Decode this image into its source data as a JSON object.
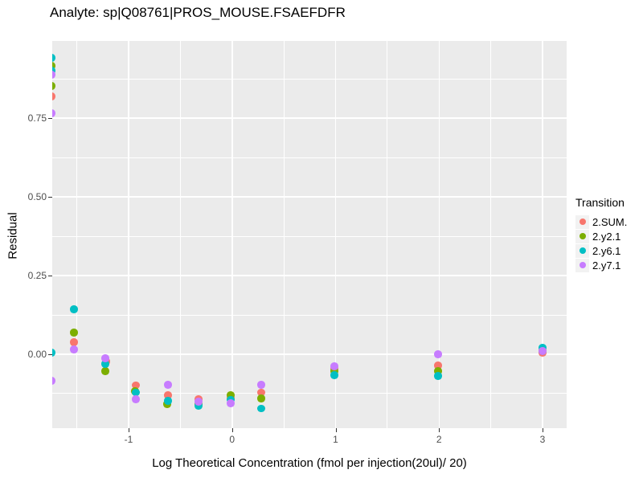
{
  "title": "Analyte: sp|Q08761|PROS_MOUSE.FSAEFDFR",
  "axes": {
    "x": {
      "label": "Log Theoretical Concentration (fmol per injection(20ul)/ 20)",
      "tick_labels": [
        "-1",
        "0",
        "1",
        "2",
        "3"
      ]
    },
    "y": {
      "label": "Residual",
      "tick_labels": [
        "0.75",
        "0.50",
        "0.25",
        "0.00"
      ]
    }
  },
  "legend": {
    "title": "Transition",
    "items": [
      {
        "label": "2.SUM.",
        "color": "#F8766D"
      },
      {
        "label": "2.y2.1",
        "color": "#7CAE00"
      },
      {
        "label": "2.y6.1",
        "color": "#00BFC4"
      },
      {
        "label": "2.y7.1",
        "color": "#C77CFF"
      }
    ]
  },
  "panel_background": "#EBEBEB",
  "chart_data": {
    "type": "scatter",
    "title": "Analyte: sp|Q08761|PROS_MOUSE.FSAEFDFR",
    "xlabel": "Log Theoretical Concentration (fmol per injection(20ul)/ 20)",
    "ylabel": "Residual",
    "x_range": [
      -1.738,
      3.233
    ],
    "y_range": [
      -0.235,
      0.995
    ],
    "grid": true,
    "legend_position": "right",
    "x_major_ticks": [
      -1,
      0,
      1,
      2,
      3
    ],
    "x_minor_ticks": [
      -1.5,
      -0.5,
      0.5,
      1.5,
      2.5
    ],
    "y_major_ticks": [
      0.75,
      0.5,
      0.25,
      0.0
    ],
    "y_minor_ticks": [
      0.875,
      0.625,
      0.375,
      0.125,
      -0.125
    ],
    "series": [
      {
        "name": "2.SUM.",
        "color": "#F8766D",
        "points": [
          [
            -1.746,
            0.819
          ],
          [
            -1.528,
            0.038
          ],
          [
            -1.218,
            -0.023
          ],
          [
            -0.93,
            -0.099
          ],
          [
            -0.619,
            -0.13
          ],
          [
            -0.324,
            -0.143
          ],
          [
            -0.014,
            -0.14
          ],
          [
            0.282,
            -0.122
          ],
          [
            0.988,
            -0.046
          ],
          [
            1.99,
            -0.036
          ],
          [
            3.0,
            0.005
          ]
        ]
      },
      {
        "name": "2.y2.1",
        "color": "#7CAE00",
        "points": [
          [
            -1.746,
            0.916
          ],
          [
            -1.746,
            0.852
          ],
          [
            -1.528,
            0.069
          ],
          [
            -1.225,
            -0.054
          ],
          [
            -0.938,
            -0.117
          ],
          [
            -0.627,
            -0.158
          ],
          [
            -0.324,
            -0.158
          ],
          [
            -0.014,
            -0.13
          ],
          [
            0.282,
            -0.14
          ],
          [
            0.988,
            -0.054
          ],
          [
            1.99,
            -0.054
          ],
          [
            3.0,
            0.01
          ]
        ]
      },
      {
        "name": "2.y6.1",
        "color": "#00BFC4",
        "points": [
          [
            -1.746,
            0.941
          ],
          [
            -1.746,
            0.901
          ],
          [
            -1.746,
            0.005
          ],
          [
            -1.528,
            0.143
          ],
          [
            -1.225,
            -0.031
          ],
          [
            -0.93,
            -0.122
          ],
          [
            -0.619,
            -0.148
          ],
          [
            -0.324,
            -0.163
          ],
          [
            -0.014,
            -0.145
          ],
          [
            0.282,
            -0.173
          ],
          [
            0.988,
            -0.066
          ],
          [
            1.99,
            -0.069
          ],
          [
            3.0,
            0.02
          ]
        ]
      },
      {
        "name": "2.y7.1",
        "color": "#C77CFF",
        "points": [
          [
            -1.746,
            0.888
          ],
          [
            -1.746,
            0.765
          ],
          [
            -1.746,
            -0.084
          ],
          [
            -1.528,
            0.015
          ],
          [
            -1.225,
            -0.013
          ],
          [
            -0.93,
            -0.143
          ],
          [
            -0.619,
            -0.097
          ],
          [
            -0.324,
            -0.151
          ],
          [
            -0.014,
            -0.156
          ],
          [
            0.282,
            -0.097
          ],
          [
            0.988,
            -0.038
          ],
          [
            1.99,
            0.0
          ],
          [
            3.0,
            0.01
          ]
        ]
      }
    ]
  }
}
